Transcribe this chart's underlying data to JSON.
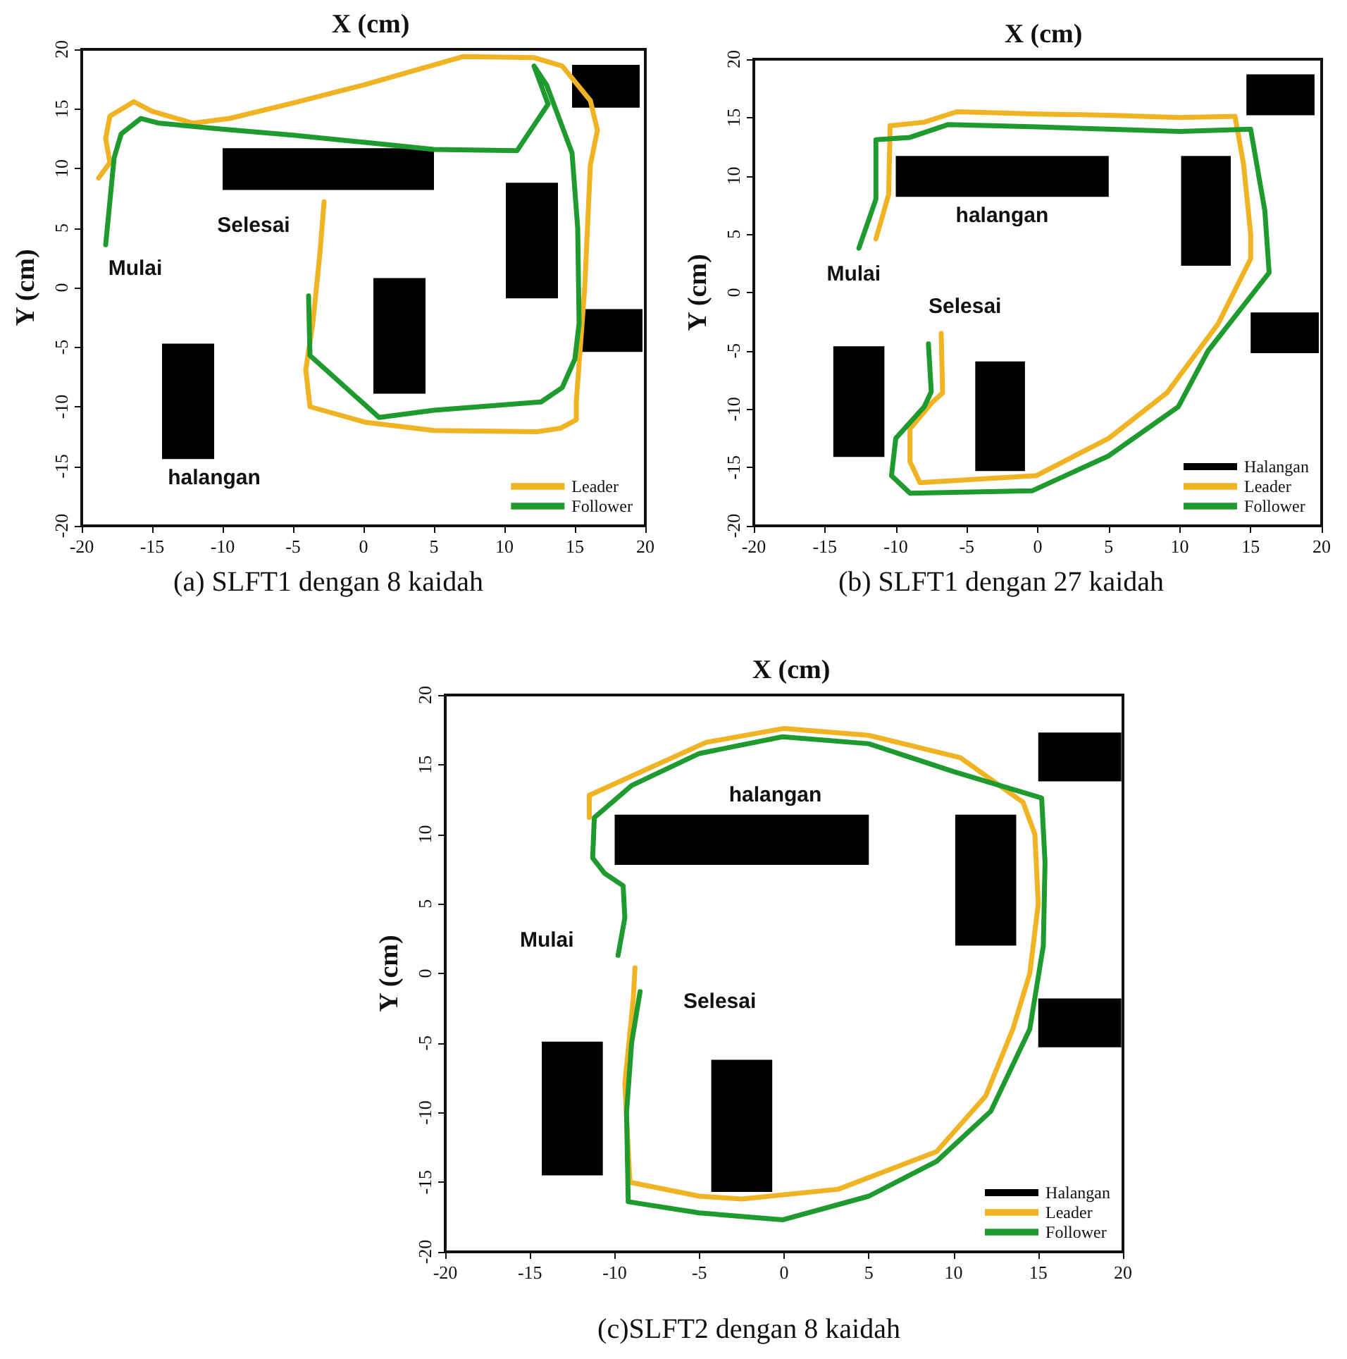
{
  "chart_data": [
    {
      "type": "line",
      "title": "(a) SLFT1 dengan 8 kaidah",
      "xlabel": "X (cm)",
      "ylabel": "Y (cm)",
      "xlim": [
        -20,
        20
      ],
      "ylim": [
        -20,
        20
      ],
      "xticks": [
        -20,
        -15,
        -10,
        -5,
        0,
        5,
        10,
        15,
        20
      ],
      "yticks": [
        -20,
        -15,
        -10,
        -5,
        0,
        5,
        10,
        15,
        20
      ],
      "legend": "bottom right",
      "marker": "none",
      "annotations": [
        "Mulai",
        "Selesai",
        "halangan"
      ],
      "series": [
        {
          "type": "area",
          "color": "#000000",
          "x": [
            -10,
            5,
            5,
            -10,
            -10
          ],
          "values": [
            8.2,
            8.2,
            11.7,
            11.7,
            8.2
          ]
        },
        {
          "type": "area",
          "color": "#000000",
          "x": [
            14.8,
            19.6,
            19.6,
            14.8,
            14.8
          ],
          "values": [
            15.1,
            15.1,
            18.7,
            18.7,
            15.1
          ]
        },
        {
          "type": "area",
          "color": "#000000",
          "x": [
            10.1,
            13.8,
            13.8,
            10.1,
            10.1
          ],
          "values": [
            -0.9,
            -0.9,
            8.8,
            8.8,
            -0.9
          ]
        },
        {
          "type": "area",
          "color": "#000000",
          "x": [
            15.5,
            19.8,
            19.8,
            15.5,
            15.5
          ],
          "values": [
            -5.4,
            -5.4,
            -1.8,
            -1.8,
            -5.4
          ]
        },
        {
          "type": "area",
          "color": "#000000",
          "x": [
            0.7,
            4.4,
            4.4,
            0.7,
            0.7
          ],
          "values": [
            -8.9,
            -8.9,
            0.8,
            0.8,
            -8.9
          ]
        },
        {
          "type": "area",
          "color": "#000000",
          "x": [
            -14.3,
            -10.6,
            -10.6,
            -14.3,
            -14.3
          ],
          "values": [
            -14.4,
            -14.4,
            -4.7,
            -4.7,
            -14.4
          ]
        },
        {
          "name": "Leader",
          "color": "#f0b323",
          "x": [
            -18.8,
            -18,
            -18.3,
            -18,
            -16.3,
            -15,
            -12.1,
            -9.5,
            -5,
            0,
            7.1,
            12.1,
            14.1,
            16.1,
            16.6,
            16.1,
            15.7,
            15.1,
            15.1,
            14,
            12.3,
            5,
            0.1,
            -3.8,
            -4.1,
            -3.6,
            -3.1,
            -2.8
          ],
          "values": [
            9.2,
            10.5,
            12.5,
            14.4,
            15.6,
            14.8,
            13.8,
            14.2,
            15.5,
            17,
            19.4,
            19.3,
            18.6,
            15.7,
            13.2,
            10.3,
            0,
            -9.6,
            -11.1,
            -11.8,
            -12.1,
            -12,
            -11.3,
            -10,
            -6.9,
            -3,
            2.8,
            7.2
          ]
        },
        {
          "name": "Follower",
          "color": "#1e9a2e",
          "x": [
            -18.3,
            -17.7,
            -17.2,
            -15.8,
            -14.5,
            -10,
            -5,
            0,
            5,
            10.9,
            13.1,
            12.1,
            13,
            14.8,
            15.2,
            15.3,
            15,
            14.1,
            12.6,
            5,
            1.1,
            -3.8,
            -3.9
          ],
          "values": [
            3.6,
            10.9,
            12.9,
            14.2,
            13.8,
            13.3,
            12.8,
            12.2,
            11.6,
            11.5,
            15.4,
            18.6,
            17,
            11.3,
            5,
            -3,
            -6,
            -8.4,
            -9.6,
            -10.3,
            -10.9,
            -5.7,
            -0.7
          ]
        }
      ]
    },
    {
      "type": "line",
      "title": "(b) SLFT1 dengan 27 kaidah",
      "xlabel": "X (cm)",
      "ylabel": "Y (cm)",
      "xlim": [
        -20,
        20
      ],
      "ylim": [
        -20,
        20
      ],
      "xticks": [
        -20,
        -15,
        -10,
        -5,
        0,
        5,
        10,
        15,
        20
      ],
      "yticks": [
        -20,
        -15,
        -10,
        -5,
        0,
        5,
        10,
        15,
        20
      ],
      "legend": "bottom right",
      "marker": "none",
      "annotations": [
        "Mulai",
        "Selesai",
        "halangan"
      ],
      "series": [
        {
          "type": "area",
          "name": "Halangan",
          "color": "#000000",
          "x": [
            -10,
            5,
            5,
            -10,
            -10
          ],
          "values": [
            8.2,
            8.2,
            11.7,
            11.7,
            8.2
          ]
        },
        {
          "type": "area",
          "color": "#000000",
          "x": [
            14.7,
            19.5,
            19.5,
            14.7,
            14.7
          ],
          "values": [
            15.2,
            15.2,
            18.7,
            18.7,
            15.2
          ]
        },
        {
          "type": "area",
          "color": "#000000",
          "x": [
            10.1,
            13.6,
            13.6,
            10.1,
            10.1
          ],
          "values": [
            2.3,
            2.3,
            11.7,
            11.7,
            2.3
          ]
        },
        {
          "type": "area",
          "color": "#000000",
          "x": [
            15,
            19.8,
            19.8,
            15,
            15
          ],
          "values": [
            -5.2,
            -5.2,
            -1.7,
            -1.7,
            -5.2
          ]
        },
        {
          "type": "area",
          "color": "#000000",
          "x": [
            -4.4,
            -0.9,
            -0.9,
            -4.4,
            -4.4
          ],
          "values": [
            -15.3,
            -15.3,
            -5.9,
            -5.9,
            -15.3
          ]
        },
        {
          "type": "area",
          "color": "#000000",
          "x": [
            -14.4,
            -10.8,
            -10.8,
            -14.4,
            -14.4
          ],
          "values": [
            -14.1,
            -14.1,
            -4.6,
            -4.6,
            -14.1
          ]
        },
        {
          "name": "Leader",
          "color": "#f0b323",
          "x": [
            -11.4,
            -10.5,
            -10.4,
            -8,
            -5.7,
            0,
            5,
            10,
            13.9,
            14.5,
            15,
            15,
            12.7,
            9.1,
            5,
            -0.1,
            -8.3,
            -9,
            -9,
            -7.5,
            -6.7,
            -6.8
          ],
          "values": [
            4.6,
            8.4,
            14.3,
            14.6,
            15.5,
            15.3,
            15.2,
            15,
            15.1,
            11,
            5,
            2.9,
            -2.7,
            -8.6,
            -12.5,
            -15.7,
            -16.3,
            -14.5,
            -11.7,
            -9.5,
            -8.6,
            -3.5
          ]
        },
        {
          "name": "Follower",
          "color": "#1e9a2e",
          "x": [
            -12.6,
            -11.4,
            -11.4,
            -9,
            -6.3,
            0,
            5,
            10,
            15,
            16,
            16.3,
            12,
            9.9,
            5,
            -0.4,
            -9,
            -10.3,
            -10,
            -8,
            -7.5,
            -7.7
          ],
          "values": [
            3.8,
            8,
            13.1,
            13.3,
            14.4,
            14.2,
            14,
            13.8,
            14,
            7,
            1.7,
            -5,
            -9.8,
            -14,
            -17,
            -17.2,
            -15.7,
            -12.5,
            -9.8,
            -8.5,
            -4.4
          ]
        }
      ]
    },
    {
      "type": "line",
      "title": "(c)SLFT2 dengan 8 kaidah",
      "xlabel": "X (cm)",
      "ylabel": "Y (cm)",
      "xlim": [
        -20,
        20
      ],
      "ylim": [
        -20,
        20
      ],
      "xticks": [
        -20,
        -15,
        -10,
        -5,
        0,
        5,
        10,
        15,
        20
      ],
      "yticks": [
        -20,
        -15,
        -10,
        -5,
        0,
        5,
        10,
        15,
        20
      ],
      "legend": "bottom right",
      "marker": "none",
      "annotations": [
        "Mulai",
        "Selesai",
        "halangan"
      ],
      "series": [
        {
          "type": "area",
          "name": "Halangan",
          "color": "#000000",
          "x": [
            -10,
            5,
            5,
            -10,
            -10
          ],
          "values": [
            7.8,
            7.8,
            11.4,
            11.4,
            7.8
          ]
        },
        {
          "type": "area",
          "color": "#000000",
          "x": [
            10.1,
            13.7,
            13.7,
            10.1,
            10.1
          ],
          "values": [
            2,
            2,
            11.4,
            11.4,
            2
          ]
        },
        {
          "type": "area",
          "color": "#000000",
          "x": [
            15,
            19.9,
            19.9,
            15,
            15
          ],
          "values": [
            13.8,
            13.8,
            17.3,
            17.3,
            13.8
          ]
        },
        {
          "type": "area",
          "color": "#000000",
          "x": [
            15,
            19.9,
            19.9,
            15,
            15
          ],
          "values": [
            -5.3,
            -5.3,
            -1.8,
            -1.8,
            -5.3
          ]
        },
        {
          "type": "area",
          "color": "#000000",
          "x": [
            -14.3,
            -10.7,
            -10.7,
            -14.3,
            -14.3
          ],
          "values": [
            -14.5,
            -14.5,
            -4.9,
            -4.9,
            -14.5
          ]
        },
        {
          "type": "area",
          "color": "#000000",
          "x": [
            -4.3,
            -0.7,
            -0.7,
            -4.3,
            -4.3
          ],
          "values": [
            -15.7,
            -15.7,
            -6.2,
            -6.2,
            -15.7
          ]
        },
        {
          "name": "Leader",
          "color": "#f0b323",
          "x": [
            -8.8,
            -8.9,
            -9.4,
            -9.1,
            -5,
            -2.5,
            3.2,
            9,
            11.9,
            13.5,
            14.5,
            15,
            14.8,
            14.1,
            10.4,
            5,
            0,
            -4.6,
            -11.5,
            -11.5
          ],
          "values": [
            0.4,
            -1.8,
            -7.9,
            -15,
            -16,
            -16.2,
            -15.5,
            -12.8,
            -8.8,
            -4,
            0,
            5,
            10,
            12.3,
            15.5,
            17.1,
            17.6,
            16.6,
            12.8,
            11.2
          ]
        },
        {
          "name": "Follower",
          "color": "#1e9a2e",
          "x": [
            -9.8,
            -9.4,
            -9.5,
            -10.6,
            -11.3,
            -11.2,
            -9,
            -5,
            -0.1,
            5,
            10,
            15.2,
            15.4,
            15.3,
            14.5,
            12.2,
            9,
            5,
            -0.1,
            -5,
            -9.2,
            -9.3,
            -9,
            -8.5
          ],
          "values": [
            1.3,
            4,
            6.3,
            7.2,
            8.3,
            11.2,
            13.5,
            15.8,
            17,
            16.5,
            14.5,
            12.6,
            8,
            2,
            -4,
            -9.9,
            -13.5,
            -16,
            -17.7,
            -17.2,
            -16.4,
            -10,
            -5,
            -1.3
          ]
        }
      ]
    }
  ]
}
